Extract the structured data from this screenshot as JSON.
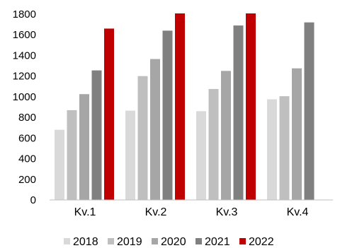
{
  "chart_data": {
    "type": "bar",
    "title": "",
    "xlabel": "",
    "ylabel": "",
    "ylim": [
      0,
      1800
    ],
    "yticks": [
      0,
      200,
      400,
      600,
      800,
      1000,
      1200,
      1400,
      1600,
      1800
    ],
    "grid": false,
    "legend_position": "bottom",
    "categories": [
      "Kv.1",
      "Kv.2",
      "Kv.3",
      "Kv.4"
    ],
    "series": [
      {
        "name": "2018",
        "color": "#d9d9d9",
        "values": [
          680,
          865,
          860,
          975
        ]
      },
      {
        "name": "2019",
        "color": "#bfbfbf",
        "values": [
          870,
          1200,
          1075,
          1005
        ]
      },
      {
        "name": "2020",
        "color": "#a6a6a6",
        "values": [
          1025,
          1365,
          1250,
          1275
        ]
      },
      {
        "name": "2021",
        "color": "#808080",
        "values": [
          1255,
          1640,
          1690,
          1720
        ]
      },
      {
        "name": "2022",
        "color": "#c00000",
        "values": [
          1660,
          1810,
          1810,
          null
        ]
      }
    ]
  }
}
